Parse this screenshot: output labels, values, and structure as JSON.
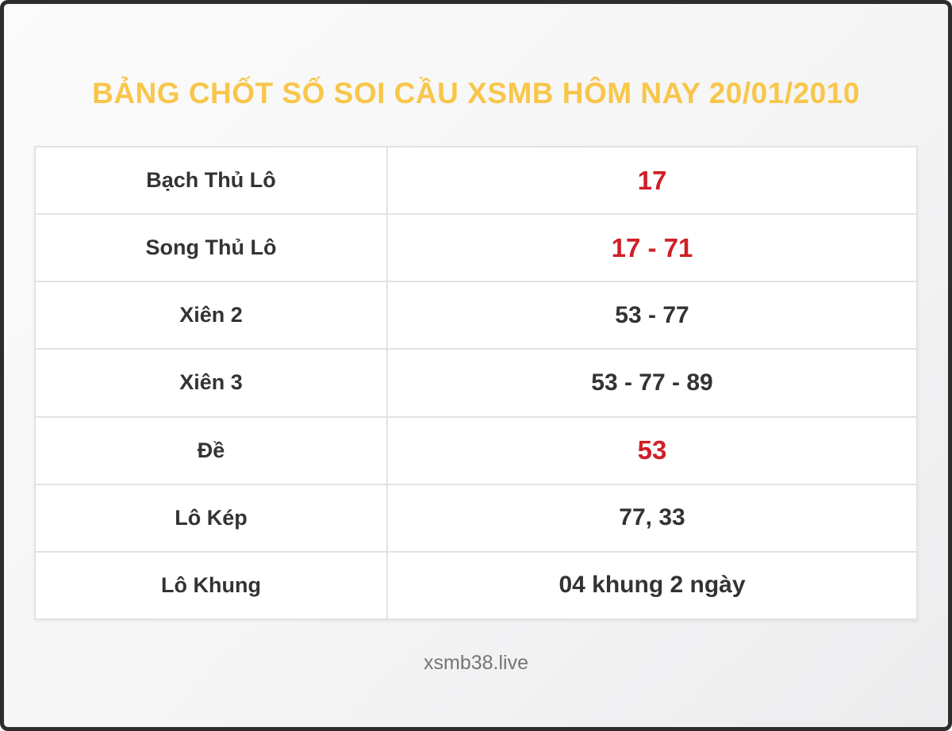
{
  "header": {
    "title": "BẢNG CHỐT SỐ SOI CẦU XSMB HÔM NAY 20/01/2010"
  },
  "table": {
    "rows": [
      {
        "label": "Bạch Thủ Lô",
        "value": "17",
        "highlight": true
      },
      {
        "label": "Song Thủ Lô",
        "value": "17 - 71",
        "highlight": true
      },
      {
        "label": "Xiên 2",
        "value": "53 - 77",
        "highlight": false
      },
      {
        "label": "Xiên 3",
        "value": "53 - 77 - 89",
        "highlight": false
      },
      {
        "label": "Đề",
        "value": "53",
        "highlight": true
      },
      {
        "label": "Lô Kép",
        "value": "77, 33",
        "highlight": false
      },
      {
        "label": "Lô Khung",
        "value": "04 khung 2 ngày",
        "highlight": false
      }
    ]
  },
  "footer": {
    "site": "xsmb38.live"
  },
  "colors": {
    "title_text": "#f8c64a",
    "highlight_number": "#d01f27",
    "label_text": "#333333",
    "footer_text": "#757575",
    "frame_border": "#2d2d2d",
    "cell_border": "#e2e2e2"
  }
}
